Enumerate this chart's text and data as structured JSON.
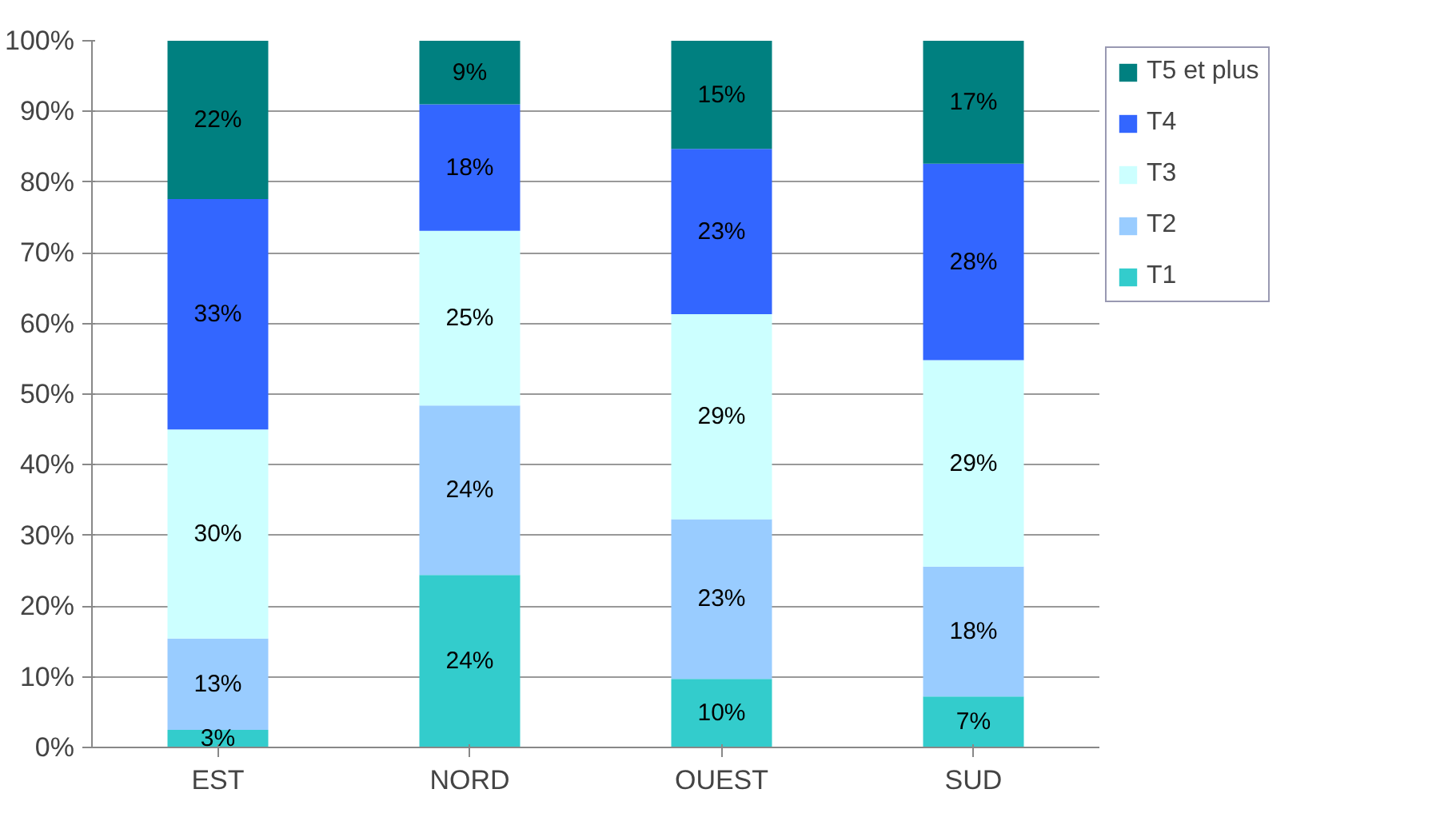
{
  "chart_data": {
    "type": "bar",
    "stacked": true,
    "categories": [
      "EST",
      "NORD",
      "OUEST",
      "SUD"
    ],
    "series": [
      {
        "name": "T1",
        "color": "#33cccc",
        "values": [
          2.5,
          24.4,
          9.7,
          7.2
        ],
        "value_labels": [
          "3%",
          "24%",
          "10%",
          "7%"
        ]
      },
      {
        "name": "T2",
        "color": "#99ccff",
        "values": [
          12.9,
          24.0,
          22.6,
          18.4
        ],
        "value_labels": [
          "13%",
          "24%",
          "23%",
          "18%"
        ]
      },
      {
        "name": "T3",
        "color": "#ccffff",
        "values": [
          29.6,
          24.7,
          29.0,
          29.2
        ],
        "value_labels": [
          "30%",
          "25%",
          "29%",
          "29%"
        ]
      },
      {
        "name": "T4",
        "color": "#3366ff",
        "values": [
          32.6,
          17.9,
          23.4,
          27.8
        ],
        "value_labels": [
          "33%",
          "18%",
          "23%",
          "28%"
        ]
      },
      {
        "name": "T5 et plus",
        "color": "#008080",
        "values": [
          22.4,
          9.0,
          15.3,
          17.4
        ],
        "value_labels": [
          "22%",
          "9%",
          "15%",
          "17%"
        ]
      }
    ],
    "ylim": [
      0,
      100
    ],
    "yticks": [
      {
        "value": 0,
        "label": "0%"
      },
      {
        "value": 10,
        "label": "10%"
      },
      {
        "value": 20,
        "label": "20%"
      },
      {
        "value": 30,
        "label": "30%"
      },
      {
        "value": 40,
        "label": "40%"
      },
      {
        "value": 50,
        "label": "50%"
      },
      {
        "value": 60,
        "label": "60%"
      },
      {
        "value": 70,
        "label": "70%"
      },
      {
        "value": 80,
        "label": "80%"
      },
      {
        "value": 90,
        "label": "90%"
      },
      {
        "value": 100,
        "label": "100%"
      }
    ],
    "grid": "y",
    "legend": "right"
  }
}
